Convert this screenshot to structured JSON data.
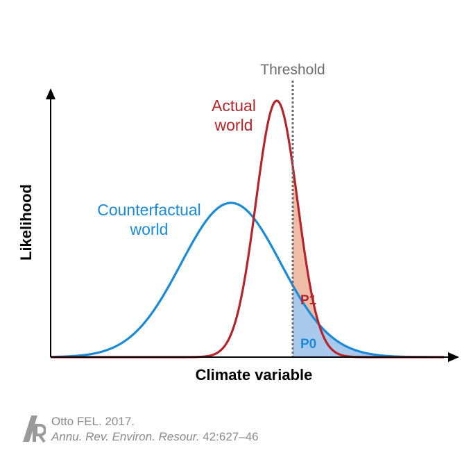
{
  "diagram": {
    "threshold_label": "Threshold",
    "actual_label_line1": "Actual",
    "actual_label_line2": "world",
    "counterfactual_label_line1": "Counterfactual",
    "counterfactual_label_line2": "world",
    "p1_label": "P1",
    "p0_label": "P0",
    "y_axis_label": "Likelihood",
    "x_axis_label": "Climate variable",
    "colors": {
      "actual": "#b5242a",
      "counterfactual": "#1a8ad6",
      "p1_fill": "#eebca7",
      "p0_fill": "#a8c8ec",
      "threshold": "#6b6b6b",
      "axis": "#000000"
    }
  },
  "citation": {
    "author_year": "Otto FEL. 2017.",
    "journal": "Annu. Rev. Environ. Resour.",
    "pages": " 42:627–46",
    "logo": "annual-reviews-logo"
  }
}
